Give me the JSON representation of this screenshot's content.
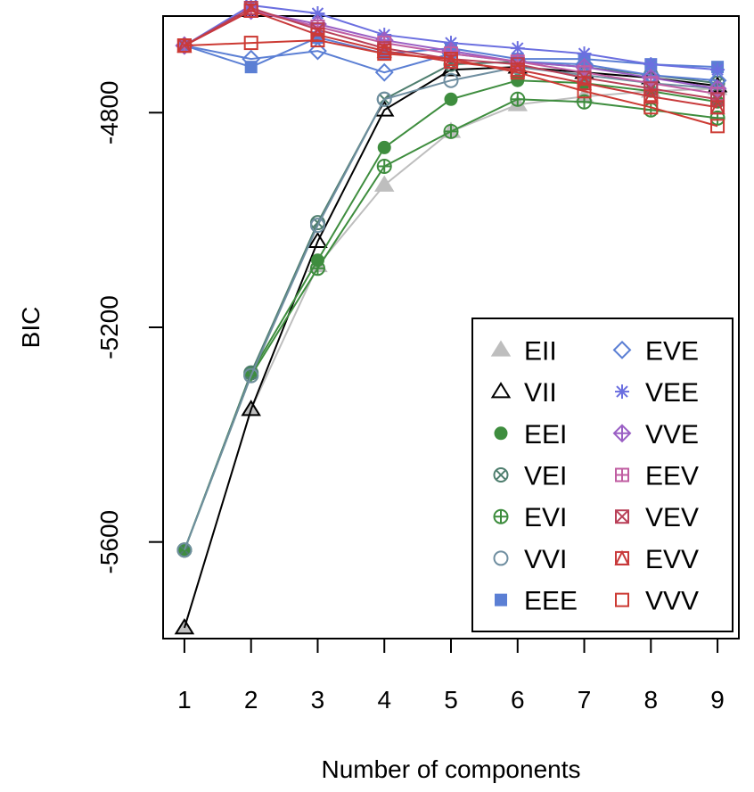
{
  "chart_data": {
    "type": "line",
    "title": "",
    "xlabel": "Number of components",
    "ylabel": "BIC",
    "x": [
      1,
      2,
      3,
      4,
      5,
      6,
      7,
      8,
      9
    ],
    "xlim": [
      0.68,
      9.32
    ],
    "ylim": [
      -5780,
      -4620
    ],
    "yticks": [
      -5600,
      -5200,
      -4800
    ],
    "grid": false,
    "legend_position": "bottom-right",
    "series": [
      {
        "name": "EII",
        "color": "#bebebe",
        "marker": "filled-triangle",
        "values": [
          -5760,
          -5353,
          -5085,
          -4935,
          -4835,
          -4785,
          -4770,
          -4760,
          -4755
        ]
      },
      {
        "name": "VII",
        "color": "#000000",
        "marker": "open-triangle",
        "values": [
          -5760,
          -5353,
          -5040,
          -4795,
          -4720,
          -4715,
          -4725,
          -4735,
          -4750
        ]
      },
      {
        "name": "EEI",
        "color": "#3e8d3e",
        "marker": "filled-circle",
        "values": [
          -5615,
          -5285,
          -5075,
          -4865,
          -4775,
          -4740,
          -4745,
          -4760,
          -4780
        ]
      },
      {
        "name": "VEI",
        "color": "#4e7e6e",
        "marker": "circle-x",
        "values": [
          -5615,
          -5285,
          -5005,
          -4775,
          -4710,
          -4705,
          -4715,
          -4730,
          -4745
        ]
      },
      {
        "name": "EVI",
        "color": "#3e8d3e",
        "marker": "circle-plus",
        "values": [
          -5615,
          -5290,
          -5090,
          -4900,
          -4835,
          -4775,
          -4780,
          -4795,
          -4810
        ]
      },
      {
        "name": "VVI",
        "color": "#6f8ea0",
        "marker": "open-circle",
        "values": [
          -5615,
          -5290,
          -5010,
          -4775,
          -4740,
          -4715,
          -4730,
          -4745,
          -4755
        ]
      },
      {
        "name": "EEE",
        "color": "#5b7fd4",
        "marker": "filled-square",
        "values": [
          -4675,
          -4715,
          -4660,
          -4690,
          -4680,
          -4700,
          -4700,
          -4710,
          -4715
        ]
      },
      {
        "name": "EVE",
        "color": "#5b7fd4",
        "marker": "open-diamond",
        "values": [
          -4675,
          -4700,
          -4685,
          -4725,
          -4690,
          -4705,
          -4710,
          -4730,
          -4740
        ]
      },
      {
        "name": "VEE",
        "color": "#6b6fe0",
        "marker": "asterisk",
        "values": [
          -4675,
          -4600,
          -4615,
          -4655,
          -4670,
          -4680,
          -4690,
          -4710,
          -4720
        ]
      },
      {
        "name": "VVE",
        "color": "#9a5fc4",
        "marker": "diamond-plus",
        "values": [
          -4675,
          -4610,
          -4635,
          -4665,
          -4685,
          -4705,
          -4715,
          -4735,
          -4755
        ]
      },
      {
        "name": "EEV",
        "color": "#c05ea2",
        "marker": "square-plus",
        "values": [
          -4675,
          -4610,
          -4640,
          -4670,
          -4690,
          -4705,
          -4725,
          -4745,
          -4765
        ]
      },
      {
        "name": "VEV",
        "color": "#b94058",
        "marker": "square-x",
        "values": [
          -4675,
          -4605,
          -4645,
          -4680,
          -4700,
          -4710,
          -4735,
          -4755,
          -4775
        ]
      },
      {
        "name": "EVV",
        "color": "#c8393a",
        "marker": "square-triangle",
        "values": [
          -4675,
          -4610,
          -4655,
          -4685,
          -4705,
          -4720,
          -4745,
          -4770,
          -4790
        ]
      },
      {
        "name": "VVV",
        "color": "#cc3a33",
        "marker": "open-square",
        "values": [
          -4675,
          -4670,
          -4665,
          -4690,
          -4700,
          -4725,
          -4760,
          -4790,
          -4825
        ]
      }
    ]
  }
}
